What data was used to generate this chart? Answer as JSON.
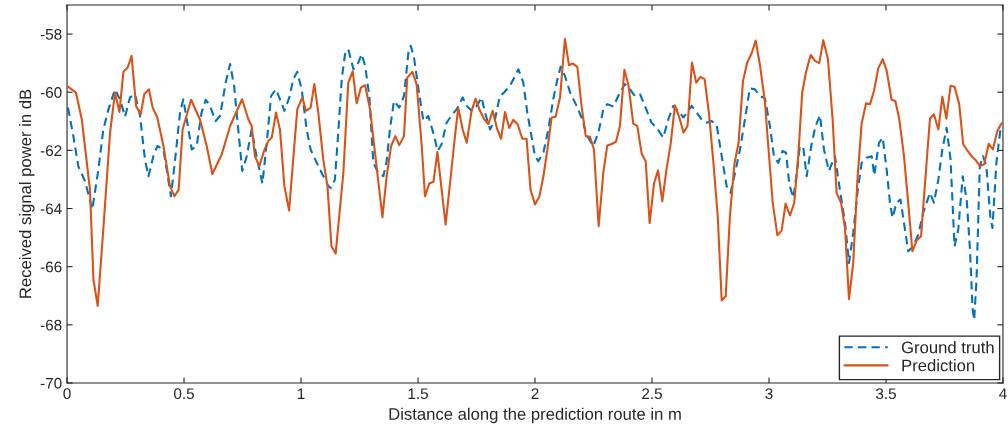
{
  "chart_data": {
    "type": "line",
    "xlabel": "Distance along the prediction route in m",
    "ylabel": "Received signal power in dB",
    "xlim": [
      0,
      4
    ],
    "xticks": [
      0,
      0.5,
      1,
      1.5,
      2,
      2.5,
      3,
      3.5,
      4
    ],
    "ylim": [
      -70,
      -57
    ],
    "yticks": [
      -70,
      -68,
      -66,
      -64,
      -62,
      -60,
      -58
    ],
    "grid": false,
    "legend": "bottom right",
    "marker": "none",
    "series": [
      {
        "name": "Ground truth",
        "color": "#0072bd",
        "line_style": "dashed",
        "x": [
          0.004,
          0.027,
          0.048,
          0.077,
          0.108,
          0.134,
          0.155,
          0.177,
          0.205,
          0.226,
          0.248,
          0.269,
          0.291,
          0.312,
          0.333,
          0.348,
          0.369,
          0.386,
          0.412,
          0.426,
          0.444,
          0.462,
          0.483,
          0.497,
          0.514,
          0.533,
          0.554,
          0.575,
          0.593,
          0.611,
          0.635,
          0.654,
          0.678,
          0.697,
          0.714,
          0.729,
          0.749,
          0.768,
          0.789,
          0.811,
          0.835,
          0.853,
          0.872,
          0.893,
          0.91,
          0.929,
          0.95,
          0.967,
          0.984,
          1.003,
          1.024,
          1.041,
          1.064,
          1.088,
          1.117,
          1.127,
          1.145,
          1.16,
          1.174,
          1.188,
          1.202,
          1.224,
          1.245,
          1.259,
          1.274,
          1.292,
          1.309,
          1.33,
          1.352,
          1.366,
          1.38,
          1.397,
          1.42,
          1.44,
          1.459,
          1.469,
          1.483,
          1.501,
          1.523,
          1.544,
          1.565,
          1.584,
          1.601,
          1.622,
          1.644,
          1.665,
          1.691,
          1.708,
          1.729,
          1.751,
          1.772,
          1.786,
          1.808,
          1.829,
          1.85,
          1.868,
          1.893,
          1.915,
          1.929,
          1.95,
          1.967,
          2.0,
          2.014,
          2.036,
          2.057,
          2.078,
          2.096,
          2.11,
          2.128,
          2.15,
          2.178,
          2.199,
          2.221,
          2.249,
          2.271,
          2.292,
          2.309,
          2.335,
          2.363,
          2.384,
          2.406,
          2.427,
          2.449,
          2.47,
          2.498,
          2.52,
          2.548,
          2.57,
          2.591,
          2.613,
          2.634,
          2.655,
          2.67,
          2.691,
          2.712,
          2.734,
          2.755,
          2.776,
          2.798,
          2.819,
          2.836,
          2.855,
          2.876,
          2.894,
          2.918,
          2.94,
          2.961,
          2.983,
          3.004,
          3.021,
          3.04,
          3.058,
          3.073,
          3.087,
          3.104,
          3.121,
          3.132,
          3.147,
          3.161,
          3.182,
          3.199,
          3.218,
          3.235,
          3.256,
          3.282,
          3.303,
          3.325,
          3.342,
          3.36,
          3.378,
          3.396,
          3.417,
          3.439,
          3.45,
          3.47,
          3.486,
          3.503,
          3.517,
          3.528,
          3.545,
          3.562,
          3.577,
          3.595,
          3.616,
          3.638,
          3.659,
          3.688,
          3.705,
          3.724,
          3.741,
          3.759,
          3.776,
          3.793,
          3.809,
          3.828,
          3.845,
          3.859,
          3.87,
          3.877,
          3.887,
          3.901,
          3.915,
          3.929,
          3.946,
          3.955,
          3.972,
          3.989
        ],
        "values": [
          -60.53,
          -61.51,
          -62.54,
          -63.06,
          -64.03,
          -62.66,
          -61.28,
          -60.59,
          -59.9,
          -60.24,
          -60.84,
          -60.18,
          -60.07,
          -60.82,
          -62.31,
          -62.89,
          -62.2,
          -61.85,
          -61.97,
          -62.66,
          -63.58,
          -62.31,
          -60.7,
          -60.24,
          -61.05,
          -61.97,
          -61.85,
          -60.7,
          -60.26,
          -60.47,
          -60.99,
          -60.82,
          -59.67,
          -59.03,
          -59.78,
          -61.05,
          -62.71,
          -62.2,
          -61.28,
          -62.25,
          -63.14,
          -61.79,
          -60.13,
          -59.9,
          -60.24,
          -60.64,
          -60.18,
          -59.55,
          -59.3,
          -59.9,
          -61.28,
          -61.97,
          -62.37,
          -62.77,
          -63.23,
          -63.29,
          -63.0,
          -61.28,
          -59.55,
          -58.69,
          -58.52,
          -59.21,
          -58.98,
          -58.69,
          -59.09,
          -60.13,
          -62.43,
          -62.77,
          -62.89,
          -62.37,
          -61.28,
          -60.3,
          -60.53,
          -60.13,
          -58.63,
          -58.4,
          -58.81,
          -59.84,
          -60.99,
          -60.82,
          -61.39,
          -62.02,
          -61.79,
          -61.05,
          -60.79,
          -60.59,
          -60.18,
          -60.47,
          -60.64,
          -60.47,
          -60.18,
          -60.7,
          -61.28,
          -60.93,
          -60.13,
          -60.01,
          -59.78,
          -59.44,
          -59.21,
          -59.67,
          -60.7,
          -62.2,
          -62.37,
          -62.08,
          -61.28,
          -60.24,
          -59.55,
          -59.12,
          -59.44,
          -60.01,
          -60.47,
          -60.87,
          -61.48,
          -61.85,
          -61.39,
          -60.59,
          -60.41,
          -60.49,
          -60.01,
          -59.72,
          -59.9,
          -60.13,
          -60.07,
          -60.47,
          -61.05,
          -61.22,
          -61.56,
          -60.93,
          -60.47,
          -60.64,
          -60.87,
          -60.64,
          -60.47,
          -60.7,
          -60.93,
          -61.05,
          -60.99,
          -61.1,
          -62.2,
          -63.23,
          -63.46,
          -62.77,
          -61.97,
          -61.1,
          -59.87,
          -59.9,
          -60.13,
          -60.21,
          -61.16,
          -62.2,
          -62.43,
          -62.02,
          -62.08,
          -63.17,
          -63.63,
          -62.66,
          -61.85,
          -61.91,
          -62.89,
          -61.79,
          -61.16,
          -60.79,
          -61.97,
          -62.71,
          -62.2,
          -63.35,
          -64.49,
          -65.87,
          -64.84,
          -63.46,
          -62.43,
          -62.25,
          -62.2,
          -62.86,
          -61.74,
          -61.56,
          -62.66,
          -63.8,
          -64.32,
          -63.8,
          -63.69,
          -64.49,
          -65.47,
          -65.3,
          -64.9,
          -64.15,
          -63.46,
          -63.8,
          -63.0,
          -61.97,
          -61.22,
          -62.31,
          -65.3,
          -64.72,
          -62.89,
          -63.69,
          -65.41,
          -67.43,
          -67.83,
          -66.45,
          -62.54,
          -62.2,
          -62.54,
          -64.27,
          -64.67,
          -62.43,
          -61.28
        ]
      },
      {
        "name": "Prediction",
        "color": "#d95319",
        "line_style": "solid",
        "x": [
          0.004,
          0.038,
          0.063,
          0.098,
          0.113,
          0.131,
          0.155,
          0.184,
          0.205,
          0.224,
          0.241,
          0.259,
          0.276,
          0.295,
          0.315,
          0.33,
          0.35,
          0.366,
          0.386,
          0.412,
          0.44,
          0.459,
          0.477,
          0.494,
          0.53,
          0.568,
          0.597,
          0.621,
          0.661,
          0.697,
          0.748,
          0.775,
          0.789,
          0.803,
          0.822,
          0.842,
          0.86,
          0.875,
          0.893,
          0.91,
          0.929,
          0.949,
          0.984,
          1.006,
          1.021,
          1.041,
          1.057,
          1.074,
          1.095,
          1.113,
          1.13,
          1.148,
          1.181,
          1.202,
          1.221,
          1.238,
          1.256,
          1.274,
          1.295,
          1.326,
          1.348,
          1.366,
          1.385,
          1.403,
          1.42,
          1.44,
          1.454,
          1.476,
          1.494,
          1.516,
          1.53,
          1.548,
          1.566,
          1.583,
          1.601,
          1.618,
          1.64,
          1.658,
          1.672,
          1.691,
          1.708,
          1.729,
          1.746,
          1.765,
          1.783,
          1.801,
          1.819,
          1.839,
          1.855,
          1.872,
          1.89,
          1.907,
          1.926,
          1.946,
          1.964,
          1.981,
          2.0,
          2.019,
          2.036,
          2.053,
          2.071,
          2.088,
          2.107,
          2.128,
          2.145,
          2.161,
          2.181,
          2.199,
          2.217,
          2.235,
          2.252,
          2.272,
          2.292,
          2.309,
          2.328,
          2.346,
          2.363,
          2.382,
          2.4,
          2.42,
          2.437,
          2.456,
          2.473,
          2.49,
          2.509,
          2.526,
          2.544,
          2.563,
          2.58,
          2.598,
          2.617,
          2.635,
          2.652,
          2.671,
          2.689,
          2.707,
          2.725,
          2.744,
          2.762,
          2.781,
          2.798,
          2.815,
          2.833,
          2.852,
          2.87,
          2.889,
          2.907,
          2.926,
          2.943,
          2.962,
          2.983,
          2.997,
          3.016,
          3.036,
          3.054,
          3.071,
          3.09,
          3.108,
          3.125,
          3.142,
          3.158,
          3.178,
          3.197,
          3.215,
          3.232,
          3.252,
          3.272,
          3.289,
          3.308,
          3.325,
          3.342,
          3.36,
          3.378,
          3.396,
          3.415,
          3.432,
          3.449,
          3.467,
          3.486,
          3.503,
          3.524,
          3.54,
          3.557,
          3.577,
          3.595,
          3.613,
          3.631,
          3.65,
          3.667,
          3.688,
          3.705,
          3.724,
          3.741,
          3.758,
          3.776,
          3.793,
          3.813,
          3.83,
          3.849,
          3.868,
          3.885,
          3.902,
          3.92,
          3.939,
          3.957,
          3.976,
          3.994
        ],
        "values": [
          -59.81,
          -60.01,
          -60.93,
          -63.35,
          -66.45,
          -67.35,
          -64.72,
          -61.39,
          -60.01,
          -60.68,
          -59.3,
          -59.15,
          -58.75,
          -60.47,
          -60.76,
          -60.07,
          -59.9,
          -60.53,
          -60.87,
          -61.85,
          -63.23,
          -63.58,
          -63.35,
          -61.28,
          -60.26,
          -60.93,
          -61.85,
          -62.81,
          -62.14,
          -61.16,
          -60.24,
          -60.93,
          -61.16,
          -62.2,
          -62.54,
          -62.02,
          -61.68,
          -61.56,
          -60.7,
          -61.28,
          -63.23,
          -64.07,
          -60.59,
          -60.18,
          -60.64,
          -60.53,
          -59.72,
          -60.7,
          -62.31,
          -63.23,
          -65.3,
          -65.55,
          -62.77,
          -59.67,
          -59.28,
          -60.38,
          -59.84,
          -59.76,
          -60.59,
          -62.77,
          -64.3,
          -62.89,
          -61.85,
          -61.51,
          -61.82,
          -61.51,
          -59.5,
          -59.3,
          -59.72,
          -61.85,
          -63.58,
          -63.14,
          -63.08,
          -62.06,
          -63.35,
          -64.55,
          -62.89,
          -61.51,
          -60.53,
          -61.28,
          -61.74,
          -60.64,
          -60.22,
          -60.64,
          -60.93,
          -61.1,
          -60.64,
          -61.28,
          -61.6,
          -60.68,
          -61.23,
          -60.95,
          -61.1,
          -61.6,
          -61.6,
          -63.35,
          -63.86,
          -63.58,
          -62.89,
          -61.97,
          -60.87,
          -60.84,
          -60.18,
          -58.17,
          -59.07,
          -59.01,
          -59.13,
          -60.47,
          -61.51,
          -61.53,
          -61.97,
          -64.61,
          -62.77,
          -61.83,
          -61.78,
          -61.7,
          -61.16,
          -59.23,
          -59.78,
          -61.08,
          -61.16,
          -62.12,
          -62.37,
          -64.5,
          -63.12,
          -62.69,
          -63.75,
          -62.6,
          -61.77,
          -60.45,
          -60.87,
          -61.39,
          -61.16,
          -58.98,
          -59.67,
          -59.47,
          -59.55,
          -60.76,
          -62.37,
          -64.27,
          -67.16,
          -67.02,
          -64.27,
          -62.48,
          -61.74,
          -59.61,
          -58.98,
          -58.66,
          -58.22,
          -59.09,
          -60.36,
          -61.85,
          -63.8,
          -64.92,
          -64.76,
          -63.83,
          -64.24,
          -63.8,
          -62.2,
          -60.01,
          -59.32,
          -58.72,
          -58.92,
          -59.0,
          -58.21,
          -58.86,
          -60.93,
          -63.46,
          -63.8,
          -64.67,
          -67.12,
          -65.87,
          -63.0,
          -61.08,
          -60.38,
          -60.41,
          -59.95,
          -59.18,
          -58.86,
          -59.26,
          -60.26,
          -60.3,
          -60.93,
          -62.2,
          -63.8,
          -65.47,
          -65.1,
          -64.95,
          -63.12,
          -60.91,
          -60.76,
          -61.28,
          -60.15,
          -60.91,
          -59.78,
          -59.81,
          -60.41,
          -61.79,
          -62.02,
          -62.22,
          -62.35,
          -62.54,
          -62.48,
          -61.77,
          -61.97,
          -61.33,
          -61.07
        ]
      }
    ]
  }
}
